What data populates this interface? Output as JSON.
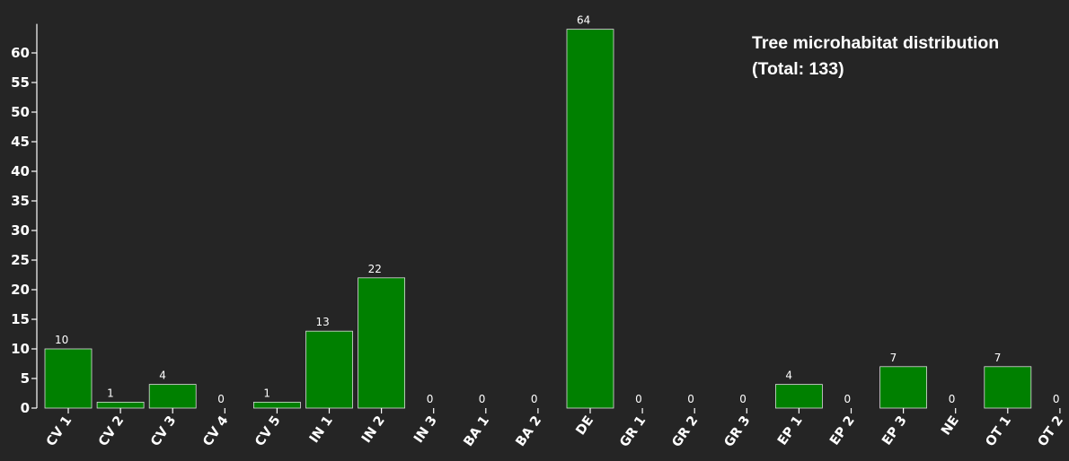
{
  "chart_data": {
    "type": "bar",
    "title_line1": "Tree microhabitat distribution",
    "title_line2": "(Total: 133)",
    "categories": [
      "CV 1",
      "CV 2",
      "CV 3",
      "CV 4",
      "CV 5",
      "IN 1",
      "IN 2",
      "IN 3",
      "BA 1",
      "BA 2",
      "DE",
      "GR 1",
      "GR 2",
      "GR 3",
      "EP 1",
      "EP 2",
      "EP 3",
      "NE",
      "OT 1",
      "OT 2"
    ],
    "values": [
      10,
      1,
      4,
      0,
      1,
      13,
      22,
      0,
      0,
      0,
      64,
      0,
      0,
      0,
      4,
      0,
      7,
      0,
      7,
      0
    ],
    "value_labels": [
      "10",
      "1",
      "4",
      "0",
      "1",
      "13",
      "22",
      "0",
      "0",
      "0",
      "64",
      "0",
      "0",
      "0",
      "4",
      "0",
      "7",
      "0",
      "7",
      "0"
    ],
    "yticks": [
      0,
      5,
      10,
      15,
      20,
      25,
      30,
      35,
      40,
      45,
      50,
      55,
      60
    ],
    "ytick_labels": [
      "0",
      "5",
      "10",
      "15",
      "20",
      "25",
      "30",
      "35",
      "40",
      "45",
      "50",
      "55",
      "60"
    ],
    "ylim": [
      0,
      64
    ],
    "grid": false,
    "bar_color": "#008000",
    "bar_edge_color": "#dcdcdc",
    "axis_color": "#ffffff",
    "background_color": "#252525"
  }
}
